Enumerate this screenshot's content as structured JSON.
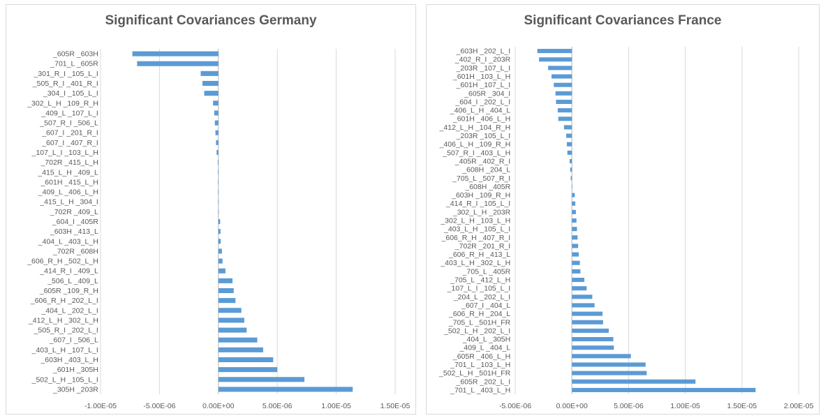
{
  "chart_data": [
    {
      "type": "bar",
      "orientation": "horizontal",
      "title": "Significant Covariances Germany",
      "bar_color": "#5b9bd5",
      "grid": true,
      "xlim": [
        -1e-05,
        1.5e-05
      ],
      "xticks": [
        -1e-05,
        -5e-06,
        0,
        5e-06,
        1e-05,
        1.5e-05
      ],
      "xtick_labels": [
        "-1.00E-05",
        "-5.00E-06",
        "0.00E+00",
        "5.00E-06",
        "1.00E-05",
        "1.50E-05"
      ],
      "categories": [
        "_605R _603H",
        "_701_L _605R",
        "_301_R_I _105_L_I",
        "_505_R_I _401_R_I",
        "_304_I _105_L_I",
        "_302_L_H _109_R_H",
        "_409_L _107_L_I",
        "_507_R_I _506_L",
        "_607_I _201_R_I",
        "_607_I _407_R_I",
        "_107_L_I _103_L_H",
        "_702R _415_L_H",
        "_415_L_H _409_L",
        "_601H _415_L_H",
        "_409_L _406_L_H",
        "_415_L_H _304_I",
        "_702R _409_L",
        "_604_I _405R",
        "_603H _413_L",
        "_404_L _403_L_H",
        "_702R _608H",
        "_606_R_H _502_L_H",
        "_414_R_I _409_L",
        "_506_L _409_L",
        "_605R _109_R_H",
        "_606_R_H _202_L_I",
        "_404_L _202_L_I",
        "_412_L_H _302_L_H",
        "_505_R_I _202_L_I",
        "_607_I _506_L",
        "_403_L_H _107_L_I",
        "_603H _403_L_H",
        "_601H _305H",
        "_502_L_H _105_L_I",
        "_305H _203R"
      ],
      "values": [
        -7.3e-06,
        -6.9e-06,
        -1.5e-06,
        -1.35e-06,
        -1.2e-06,
        -4.5e-07,
        -3.5e-07,
        -3e-07,
        -2.5e-07,
        -2e-07,
        -1.5e-07,
        -5e-08,
        -4e-08,
        -3e-08,
        -2e-08,
        -1e-08,
        0.0,
        1.5e-07,
        1.8e-07,
        2e-07,
        3e-07,
        3.5e-07,
        6e-07,
        1.2e-06,
        1.3e-06,
        1.45e-06,
        1.95e-06,
        2.2e-06,
        2.4e-06,
        3.3e-06,
        3.8e-06,
        4.65e-06,
        5e-06,
        7.3e-06,
        1.14e-05
      ]
    },
    {
      "type": "bar",
      "orientation": "horizontal",
      "title": "Significant Covariances France",
      "bar_color": "#5b9bd5",
      "grid": true,
      "xlim": [
        -5e-06,
        2e-05
      ],
      "xticks": [
        -5e-06,
        0,
        5e-06,
        1e-05,
        1.5e-05,
        2e-05
      ],
      "xtick_labels": [
        "-5.00E-06",
        "0.00E+00",
        "5.00E-06",
        "1.00E-05",
        "1.50E-05",
        "2.00E-05"
      ],
      "categories": [
        "_603H _202_L_I",
        "_402_R_I _203R",
        "_203R _107_L_I",
        "_601H _103_L_H",
        "_601H _107_L_I",
        "_605R _304_I",
        "_604_I _202_L_I",
        "_406_L_H _404_L",
        "_601H _406_L_H",
        "_412_L_H _104_R_H",
        "_203R _105_L_I",
        "_406_L_H _109_R_H",
        "_507_R_I _403_L_H",
        "_405R _402_R_I",
        "_608H _204_L",
        "_705_L _507_R_I",
        "_608H _405R",
        "_603H _109_R_H",
        "_414_R_I _105_L_I",
        "_302_L_H _203R",
        "_302_L_H _103_L_H",
        "_403_L_H _105_L_I",
        "_606_R_H _407_R_I",
        "_702R _201_R_I",
        "_606_R_H _413_L",
        "_403_L_H _302_L_H",
        "_705_L _405R",
        "_705_L _412_L_H",
        "_107_L_I _105_L_I",
        "_204_L _202_L_I",
        "_607_I _404_L",
        "_606_R_H _204_L",
        "_705_L _501H_FR",
        "_502_L_H _202_L_I",
        "_404_L _305H",
        "_409_L _404_L",
        "_605R _406_L_H",
        "_701_L _103_L_H",
        "_502_L_H _501H_FR",
        "_605R _202_L_I",
        "_701_L _403_L_H"
      ],
      "values": [
        -3.05e-06,
        -2.9e-06,
        -2.1e-06,
        -1.8e-06,
        -1.6e-06,
        -1.45e-06,
        -1.4e-06,
        -1.25e-06,
        -1.2e-06,
        -7e-07,
        -5e-07,
        -4.5e-07,
        -4e-07,
        -2e-07,
        -1.5e-07,
        -1e-07,
        3e-08,
        2.5e-07,
        3e-07,
        3.5e-07,
        4e-07,
        4.5e-07,
        5e-07,
        5.5e-07,
        6e-07,
        7e-07,
        7.5e-07,
        1.1e-06,
        1.3e-06,
        1.8e-06,
        2e-06,
        2.7e-06,
        2.75e-06,
        3.25e-06,
        3.65e-06,
        3.7e-06,
        5.2e-06,
        6.5e-06,
        6.6e-06,
        1.09e-05,
        1.62e-05
      ]
    }
  ]
}
